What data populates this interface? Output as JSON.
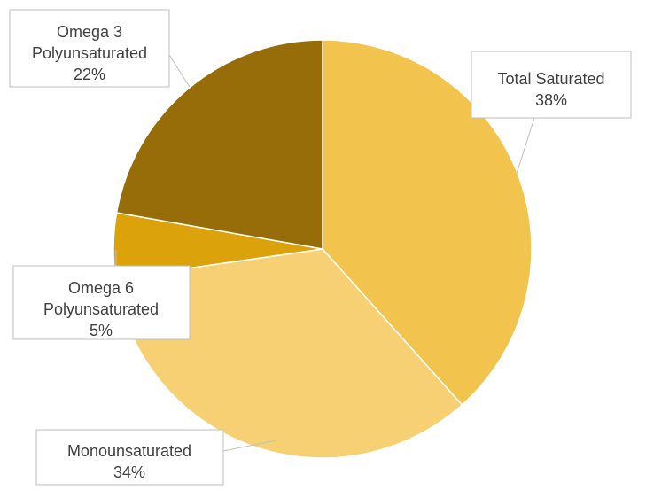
{
  "chart_data": {
    "type": "pie",
    "title": "",
    "slices": [
      {
        "name": "Total Saturated",
        "value": 38,
        "label": "38%",
        "color": "#F2C44D"
      },
      {
        "name": "Monounsaturated",
        "value": 34,
        "label": "34%",
        "color": "#F6D072"
      },
      {
        "name": "Omega 6 Polyunsaturated",
        "value": 5,
        "label": "5%",
        "color": "#DBA20C"
      },
      {
        "name": "Omega 3 Polyunsaturated",
        "value": 22,
        "label": "22%",
        "color": "#976D0A"
      }
    ],
    "callouts": [
      {
        "lines": [
          "Total Saturated",
          "38%"
        ]
      },
      {
        "lines": [
          "Monounsaturated",
          "34%"
        ]
      },
      {
        "lines": [
          "Omega 6",
          "Polyunsaturated",
          "5%"
        ]
      },
      {
        "lines": [
          "Omega 3",
          "Polyunsaturated",
          "22%"
        ]
      }
    ],
    "legend": "none"
  }
}
